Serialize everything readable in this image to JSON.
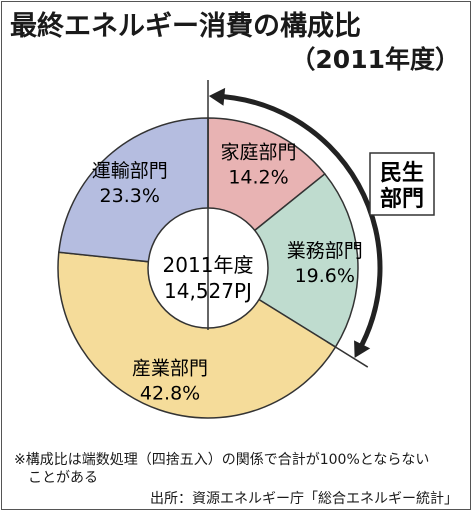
{
  "header": {
    "title": "最終エネルギー消費の構成比",
    "subtitle": "（2011年度）"
  },
  "chart_data": {
    "type": "pie",
    "center_label": [
      "2011年度",
      "14,527PJ"
    ],
    "slices": [
      {
        "name": "家庭部門",
        "value": 14.2,
        "label": "14.2%",
        "color": "#e8b3b3"
      },
      {
        "name": "業務部門",
        "value": 19.6,
        "label": "19.6%",
        "color": "#bfdccf"
      },
      {
        "name": "産業部門",
        "value": 42.8,
        "label": "42.8%",
        "color": "#f5dc9a"
      },
      {
        "name": "運輸部門",
        "value": 23.3,
        "label": "23.3%",
        "color": "#b5bde0"
      }
    ],
    "group_annotation": {
      "label_lines": [
        "民生",
        "部門"
      ],
      "covers": [
        "家庭部門",
        "業務部門"
      ]
    }
  },
  "footer": {
    "note_line1": "※構成比は端数処理（四捨五入）の関係で合計が100%とならない",
    "note_line2": "ことがある",
    "source": "出所：資源エネルギー庁「総合エネルギー統計」"
  }
}
